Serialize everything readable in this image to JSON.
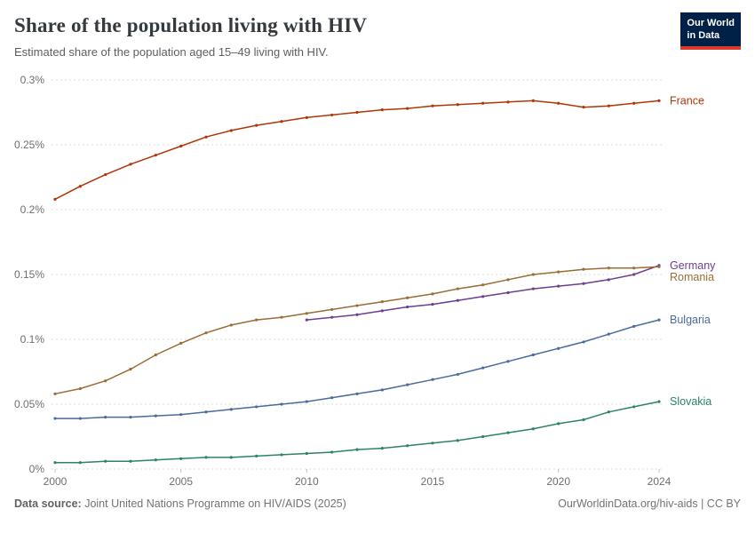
{
  "header": {
    "title": "Share of the population living with HIV",
    "subtitle": "Estimated share of the population aged 15–49 living with HIV.",
    "logo": {
      "line1": "Our World",
      "line2": "in Data",
      "bg_color": "#002147",
      "accent_color": "#D93A2B"
    }
  },
  "footer": {
    "source_label": "Data source:",
    "source_text": " Joint United Nations Programme on HIV/AIDS (2025)",
    "right_text": "OurWorldinData.org/hiv-aids | CC BY"
  },
  "chart_data": {
    "type": "line",
    "title": "Share of the population living with HIV",
    "subtitle": "Estimated share of the population aged 15–49 living with HIV.",
    "x_range": [
      2000,
      2024
    ],
    "ylim": [
      0,
      0.3
    ],
    "y_unit": "%",
    "grid": "horizontal-dashed",
    "legend_position": "right-end-labels",
    "xticks": [
      2000,
      2005,
      2010,
      2015,
      2020,
      2024
    ],
    "yticks": [
      {
        "value": 0,
        "label": "0%"
      },
      {
        "value": 0.05,
        "label": "0.05%"
      },
      {
        "value": 0.1,
        "label": "0.1%"
      },
      {
        "value": 0.15,
        "label": "0.15%"
      },
      {
        "value": 0.2,
        "label": "0.2%"
      },
      {
        "value": 0.25,
        "label": "0.25%"
      },
      {
        "value": 0.3,
        "label": "0.3%"
      }
    ],
    "series": [
      {
        "name": "France",
        "color": "#B13507",
        "start_year": 2000,
        "values": [
          0.208,
          0.218,
          0.227,
          0.235,
          0.242,
          0.249,
          0.256,
          0.261,
          0.265,
          0.268,
          0.271,
          0.273,
          0.275,
          0.277,
          0.278,
          0.28,
          0.281,
          0.282,
          0.283,
          0.284,
          0.282,
          0.279,
          0.28,
          0.282,
          0.284
        ]
      },
      {
        "name": "Germany",
        "color": "#6D3E91",
        "start_year": 2010,
        "values": [
          0.115,
          0.117,
          0.119,
          0.122,
          0.125,
          0.127,
          0.13,
          0.133,
          0.136,
          0.139,
          0.141,
          0.143,
          0.146,
          0.15,
          0.157
        ]
      },
      {
        "name": "Romania",
        "color": "#9B6C34",
        "start_year": 2000,
        "values": [
          0.058,
          0.062,
          0.068,
          0.077,
          0.088,
          0.097,
          0.105,
          0.111,
          0.115,
          0.117,
          0.12,
          0.123,
          0.126,
          0.129,
          0.132,
          0.135,
          0.139,
          0.142,
          0.146,
          0.15,
          0.152,
          0.154,
          0.155,
          0.155,
          0.156
        ]
      },
      {
        "name": "Bulgaria",
        "color": "#4C6A9C",
        "start_year": 2000,
        "values": [
          0.039,
          0.039,
          0.04,
          0.04,
          0.041,
          0.042,
          0.044,
          0.046,
          0.048,
          0.05,
          0.052,
          0.055,
          0.058,
          0.061,
          0.065,
          0.069,
          0.073,
          0.078,
          0.083,
          0.088,
          0.093,
          0.098,
          0.104,
          0.11,
          0.115
        ]
      },
      {
        "name": "Slovakia",
        "color": "#2C8465",
        "start_year": 2000,
        "values": [
          0.005,
          0.005,
          0.006,
          0.006,
          0.007,
          0.008,
          0.009,
          0.009,
          0.01,
          0.011,
          0.012,
          0.013,
          0.015,
          0.016,
          0.018,
          0.02,
          0.022,
          0.025,
          0.028,
          0.031,
          0.035,
          0.038,
          0.044,
          0.048,
          0.052
        ]
      }
    ]
  }
}
